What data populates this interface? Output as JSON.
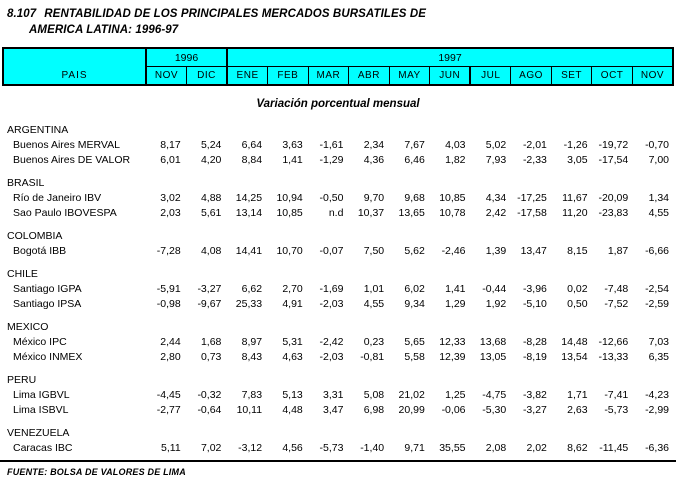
{
  "title": {
    "number": "8.107",
    "line1": "RENTABILIDAD DE LOS PRINCIPALES MERCADOS BURSATILES DE",
    "line2": "AMERICA LATINA: 1996-97"
  },
  "subtitle": "Variación porcentual mensual",
  "source": "FUENTE: BOLSA DE VALORES DE LIMA",
  "colors": {
    "header_bg": "#00FFFF",
    "border": "#000000",
    "text": "#000000"
  },
  "table": {
    "corner_label": "PAIS",
    "year_groups": [
      {
        "label": "1996",
        "span": 2
      },
      {
        "label": "1997",
        "span": 11
      }
    ],
    "months": [
      "NOV",
      "DIC",
      "ENE",
      "FEB",
      "MAR",
      "ABR",
      "MAY",
      "JUN",
      "JUL",
      "AGO",
      "SET",
      "OCT",
      "NOV"
    ],
    "groups": [
      {
        "country": "ARGENTINA",
        "rows": [
          {
            "label": "Buenos Aires MERVAL",
            "values": [
              "8,17",
              "5,24",
              "6,64",
              "3,63",
              "-1,61",
              "2,34",
              "7,67",
              "4,03",
              "5,02",
              "-2,01",
              "-1,26",
              "-19,72",
              "-0,70"
            ]
          },
          {
            "label": "Buenos Aires DE VALOR",
            "values": [
              "6,01",
              "4,20",
              "8,84",
              "1,41",
              "-1,29",
              "4,36",
              "6,46",
              "1,82",
              "7,93",
              "-2,33",
              "3,05",
              "-17,54",
              "7,00"
            ]
          }
        ]
      },
      {
        "country": "BRASIL",
        "rows": [
          {
            "label": "Río de Janeiro IBV",
            "values": [
              "3,02",
              "4,88",
              "14,25",
              "10,94",
              "-0,50",
              "9,70",
              "9,68",
              "10,85",
              "4,34",
              "-17,25",
              "11,67",
              "-20,09",
              "1,34"
            ]
          },
          {
            "label": "Sao Paulo IBOVESPA",
            "values": [
              "2,03",
              "5,61",
              "13,14",
              "10,85",
              "n.d",
              "10,37",
              "13,65",
              "10,78",
              "2,42",
              "-17,58",
              "11,20",
              "-23,83",
              "4,55"
            ]
          }
        ]
      },
      {
        "country": "COLOMBIA",
        "rows": [
          {
            "label": "Bogotá IBB",
            "values": [
              "-7,28",
              "4,08",
              "14,41",
              "10,70",
              "-0,07",
              "7,50",
              "5,62",
              "-2,46",
              "1,39",
              "13,47",
              "8,15",
              "1,87",
              "-6,66"
            ]
          }
        ]
      },
      {
        "country": "CHILE",
        "rows": [
          {
            "label": "Santiago IGPA",
            "values": [
              "-5,91",
              "-3,27",
              "6,62",
              "2,70",
              "-1,69",
              "1,01",
              "6,02",
              "1,41",
              "-0,44",
              "-3,96",
              "0,02",
              "-7,48",
              "-2,54"
            ]
          },
          {
            "label": "Santiago IPSA",
            "values": [
              "-0,98",
              "-9,67",
              "25,33",
              "4,91",
              "-2,03",
              "4,55",
              "9,34",
              "1,29",
              "1,92",
              "-5,10",
              "0,50",
              "-7,52",
              "-2,59"
            ]
          }
        ]
      },
      {
        "country": "MEXICO",
        "rows": [
          {
            "label": "México IPC",
            "values": [
              "2,44",
              "1,68",
              "8,97",
              "5,31",
              "-2,42",
              "0,23",
              "5,65",
              "12,33",
              "13,68",
              "-8,28",
              "14,48",
              "-12,66",
              "7,03"
            ]
          },
          {
            "label": "México INMEX",
            "values": [
              "2,80",
              "0,73",
              "8,43",
              "4,63",
              "-2,03",
              "-0,81",
              "5,58",
              "12,39",
              "13,05",
              "-8,19",
              "13,54",
              "-13,33",
              "6,35"
            ]
          }
        ]
      },
      {
        "country": "PERU",
        "rows": [
          {
            "label": "Lima IGBVL",
            "values": [
              "-4,45",
              "-0,32",
              "7,83",
              "5,13",
              "3,31",
              "5,08",
              "21,02",
              "1,25",
              "-4,75",
              "-3,82",
              "1,71",
              "-7,41",
              "-4,23"
            ]
          },
          {
            "label": "Lima ISBVL",
            "values": [
              "-2,77",
              "-0,64",
              "10,11",
              "4,48",
              "3,47",
              "6,98",
              "20,99",
              "-0,06",
              "-5,30",
              "-3,27",
              "2,63",
              "-5,73",
              "-2,99"
            ]
          }
        ]
      },
      {
        "country": "VENEZUELA",
        "rows": [
          {
            "label": "Caracas IBC",
            "values": [
              "5,11",
              "7,02",
              "-3,12",
              "4,56",
              "-5,73",
              "-1,40",
              "9,71",
              "35,55",
              "2,08",
              "2,02",
              "8,62",
              "-11,45",
              "-6,36"
            ]
          }
        ]
      }
    ]
  }
}
